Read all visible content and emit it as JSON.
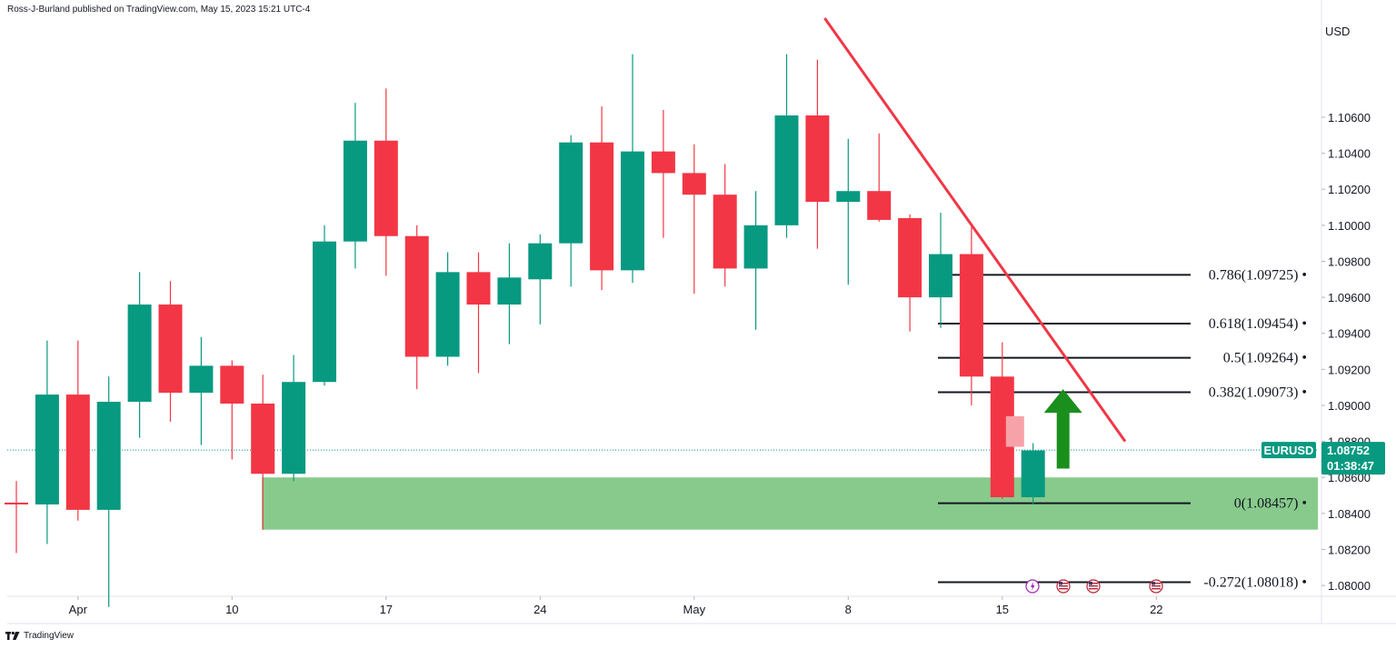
{
  "header": {
    "publisher_text": "Ross-J-Burland published on TradingView.com, May 15, 2023 15:21 UTC-4"
  },
  "footer": {
    "brand": "TradingView"
  },
  "colors": {
    "bull": "#089981",
    "bear": "#f23645",
    "zone": "#86c98a",
    "trendline": "#f23645",
    "arrow": "#1a8f1e",
    "tag_bg": "#089981",
    "ghost": "#f7a2a9"
  },
  "chart_data": {
    "type": "candlestick",
    "symbol": "EURUSD",
    "currency_label": "USD",
    "last_price": "1.08752",
    "countdown": "01:38:47",
    "ylim": [
      1.0794,
      1.1115
    ],
    "y_ticks": [
      "1.10600",
      "1.10400",
      "1.10200",
      "1.10000",
      "1.09800",
      "1.09600",
      "1.09400",
      "1.09200",
      "1.09000",
      "1.08800",
      "1.08600",
      "1.08400",
      "1.08200",
      "1.08000"
    ],
    "x_ticks": [
      "Apr",
      "10",
      "17",
      "24",
      "May",
      "8",
      "15",
      "22"
    ],
    "candles": [
      {
        "date": "2023-03-30",
        "open": 1.0846,
        "high": 1.0858,
        "low": 1.0818,
        "close": 1.0845
      },
      {
        "date": "2023-03-31",
        "open": 1.0845,
        "high": 1.0936,
        "low": 1.0823,
        "close": 1.0906
      },
      {
        "date": "2023-04-03",
        "open": 1.0906,
        "high": 1.0936,
        "low": 1.0836,
        "close": 1.0842
      },
      {
        "date": "2023-04-04",
        "open": 1.0842,
        "high": 1.0916,
        "low": 1.0788,
        "close": 1.0902
      },
      {
        "date": "2023-04-05",
        "open": 1.0902,
        "high": 1.0974,
        "low": 1.0882,
        "close": 1.0956
      },
      {
        "date": "2023-04-06",
        "open": 1.0956,
        "high": 1.0969,
        "low": 1.0891,
        "close": 1.0907
      },
      {
        "date": "2023-04-07",
        "open": 1.0907,
        "high": 1.0938,
        "low": 1.0878,
        "close": 1.0922
      },
      {
        "date": "2023-04-10",
        "open": 1.0922,
        "high": 1.0925,
        "low": 1.087,
        "close": 1.0901
      },
      {
        "date": "2023-04-11",
        "open": 1.0901,
        "high": 1.0917,
        "low": 1.0831,
        "close": 1.0862
      },
      {
        "date": "2023-04-12",
        "open": 1.0862,
        "high": 1.0928,
        "low": 1.0858,
        "close": 1.0913
      },
      {
        "date": "2023-04-13",
        "open": 1.0913,
        "high": 1.1,
        "low": 1.0911,
        "close": 1.0991
      },
      {
        "date": "2023-04-14",
        "open": 1.0991,
        "high": 1.1068,
        "low": 1.0976,
        "close": 1.1047
      },
      {
        "date": "2023-04-17",
        "open": 1.1047,
        "high": 1.1076,
        "low": 1.0972,
        "close": 1.0994
      },
      {
        "date": "2023-04-18",
        "open": 1.0994,
        "high": 1.1,
        "low": 1.0909,
        "close": 1.0927
      },
      {
        "date": "2023-04-19",
        "open": 1.0927,
        "high": 1.0985,
        "low": 1.0922,
        "close": 1.0974
      },
      {
        "date": "2023-04-20",
        "open": 1.0974,
        "high": 1.0985,
        "low": 1.0918,
        "close": 1.0956
      },
      {
        "date": "2023-04-21",
        "open": 1.0956,
        "high": 1.099,
        "low": 1.0934,
        "close": 1.0971
      },
      {
        "date": "2023-04-24",
        "open": 1.097,
        "high": 1.0995,
        "low": 1.0945,
        "close": 1.099
      },
      {
        "date": "2023-04-25",
        "open": 1.099,
        "high": 1.105,
        "low": 1.0966,
        "close": 1.1046
      },
      {
        "date": "2023-04-26",
        "open": 1.1046,
        "high": 1.1066,
        "low": 1.0964,
        "close": 1.0975
      },
      {
        "date": "2023-04-27",
        "open": 1.0975,
        "high": 1.1095,
        "low": 1.0968,
        "close": 1.1041
      },
      {
        "date": "2023-04-28",
        "open": 1.1041,
        "high": 1.1064,
        "low": 1.0993,
        "close": 1.1029
      },
      {
        "date": "2023-05-01",
        "open": 1.1029,
        "high": 1.1045,
        "low": 1.0962,
        "close": 1.1017
      },
      {
        "date": "2023-05-02",
        "open": 1.1017,
        "high": 1.1034,
        "low": 1.0966,
        "close": 1.0976
      },
      {
        "date": "2023-05-03",
        "open": 1.0976,
        "high": 1.1019,
        "low": 1.0942,
        "close": 1.1
      },
      {
        "date": "2023-05-04",
        "open": 1.1,
        "high": 1.1095,
        "low": 1.0993,
        "close": 1.1061
      },
      {
        "date": "2023-05-05",
        "open": 1.1061,
        "high": 1.1092,
        "low": 1.0987,
        "close": 1.1013
      },
      {
        "date": "2023-05-08",
        "open": 1.1013,
        "high": 1.1048,
        "low": 1.0967,
        "close": 1.1019
      },
      {
        "date": "2023-05-09",
        "open": 1.1019,
        "high": 1.1051,
        "low": 1.1002,
        "close": 1.1003
      },
      {
        "date": "2023-05-10",
        "open": 1.1004,
        "high": 1.1006,
        "low": 1.0941,
        "close": 1.096
      },
      {
        "date": "2023-05-11",
        "open": 1.096,
        "high": 1.1007,
        "low": 1.0943,
        "close": 1.0984
      },
      {
        "date": "2023-05-12",
        "open": 1.0984,
        "high": 1.0999,
        "low": 1.09,
        "close": 1.0916
      },
      {
        "date": "2023-05-15",
        "open": 1.0916,
        "high": 1.0935,
        "low": 1.0848,
        "close": 1.0849
      },
      {
        "date": "2023-05-16",
        "open": 1.0849,
        "high": 1.0879,
        "low": 1.0845,
        "close": 1.0875
      }
    ],
    "ghost_candle": {
      "open": 1.0894,
      "close": 1.0877
    },
    "fib_levels": [
      {
        "label": "0.786(1.09725)",
        "price": 1.09725
      },
      {
        "label": "0.618(1.09454)",
        "price": 1.09454
      },
      {
        "label": "0.5(1.09264)",
        "price": 1.09264
      },
      {
        "label": "0.382(1.09073)",
        "price": 1.09073
      },
      {
        "label": "0(1.08457)",
        "price": 1.08457
      },
      {
        "label": "-0.272(1.08018)",
        "price": 1.08018
      }
    ],
    "support_zone": {
      "from_date": "2023-04-11",
      "top": 1.086,
      "bottom": 1.0831
    },
    "trendline": {
      "from_date": "2023-05-05",
      "from_price": 1.1115,
      "to_date": "2023-05-19",
      "to_price": 1.088
    },
    "arrow": {
      "date": "2023-05-16",
      "from_price": 1.0873,
      "to_price": 1.0909
    }
  }
}
